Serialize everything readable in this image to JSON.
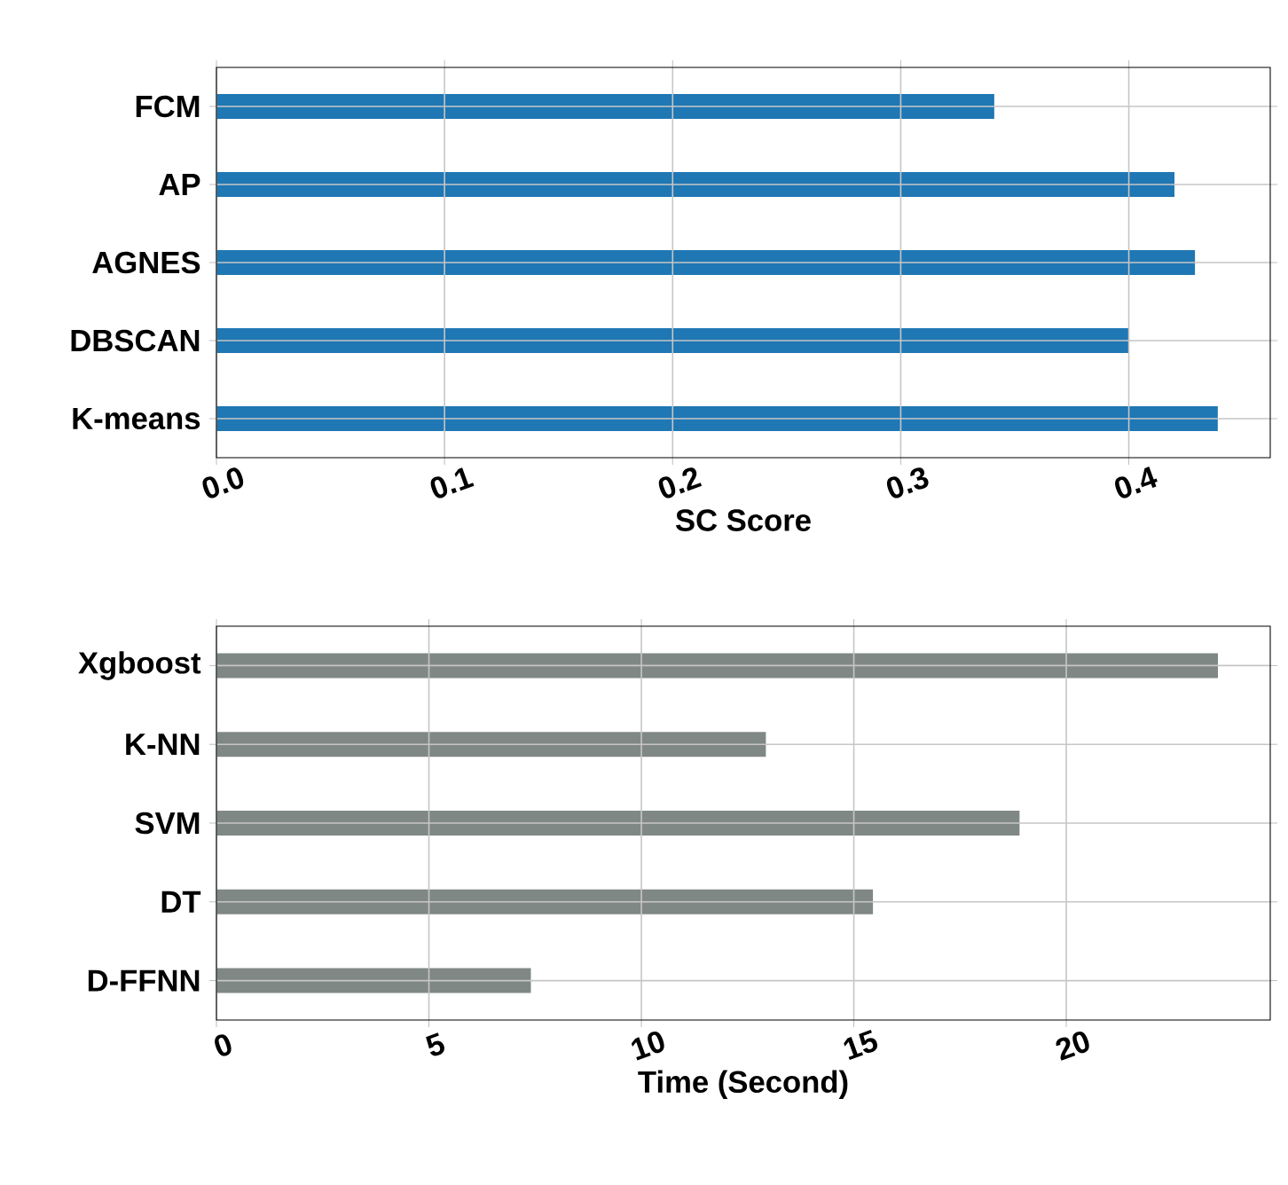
{
  "chart_data": [
    {
      "type": "bar",
      "orientation": "horizontal",
      "categories": [
        "FCM",
        "AP",
        "AGNES",
        "DBSCAN",
        "K-means"
      ],
      "values": [
        0.341,
        0.42,
        0.429,
        0.4,
        0.439
      ],
      "color": "#1f77b4",
      "xlabel": "SC Score",
      "xlim": [
        0,
        0.462
      ],
      "xticks": [
        {
          "value": 0,
          "label": "0.0"
        },
        0.1,
        0.2,
        0.3,
        0.4
      ],
      "grid": true
    },
    {
      "type": "bar",
      "orientation": "horizontal",
      "categories": [
        "Xgboost",
        "K-NN",
        "SVM",
        "DT",
        "D-FFNN"
      ],
      "values": [
        23.57,
        12.93,
        18.9,
        15.45,
        7.4
      ],
      "color": "#808885",
      "xlabel": "Time (Second)",
      "xlim": [
        0,
        24.8
      ],
      "xticks": [
        0,
        5,
        10,
        15,
        20
      ],
      "grid": true
    }
  ]
}
